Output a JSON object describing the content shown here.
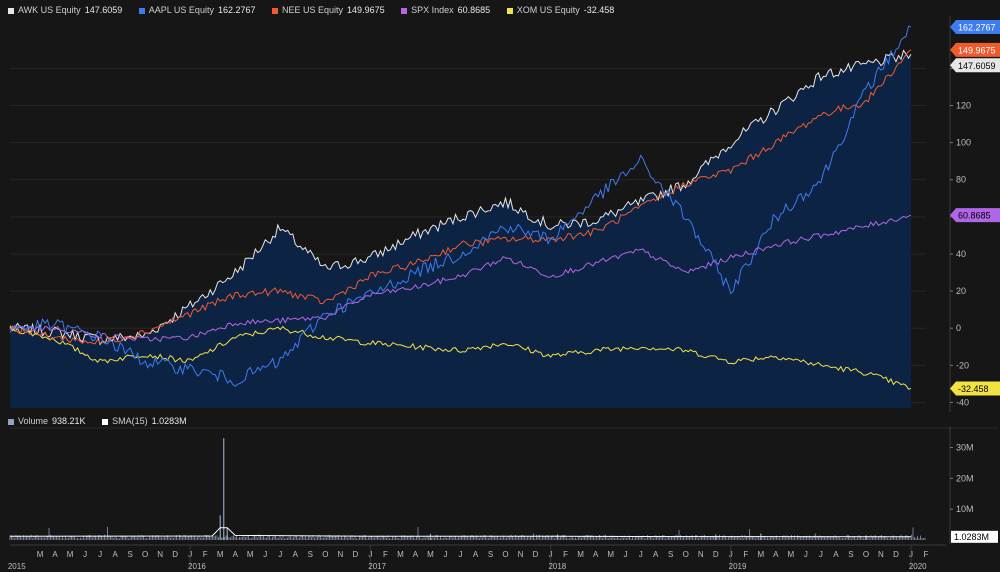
{
  "colors": {
    "AWK": "#e6e6e6",
    "AAPL": "#3d7bf0",
    "NEE": "#ef5b2d",
    "SPX": "#b066e6",
    "XOM": "#f2e244",
    "volume": "#8fa2be",
    "sma": "#ffffff",
    "area": "#0d2447"
  },
  "chart_data": [
    {
      "type": "line",
      "series": [
        {
          "key": "AWK",
          "name": "AWK US Equity",
          "last_label": "147.6059",
          "x": [
            "2015-01",
            "2015-04",
            "2015-07",
            "2015-10",
            "2016-01",
            "2016-04",
            "2016-07",
            "2016-10",
            "2017-01",
            "2017-04",
            "2017-07",
            "2017-10",
            "2018-01",
            "2018-04",
            "2018-07",
            "2018-10",
            "2019-01",
            "2019-04",
            "2019-07",
            "2019-10",
            "2020-01"
          ],
          "values": [
            0,
            -2,
            -6,
            -4,
            12,
            30,
            54,
            32,
            38,
            50,
            60,
            68,
            55,
            58,
            68,
            78,
            100,
            118,
            136,
            142,
            147.6
          ]
        },
        {
          "key": "AAPL",
          "name": "AAPL US Equity",
          "last_label": "162.2767",
          "x": [
            "2015-01",
            "2015-04",
            "2015-07",
            "2015-10",
            "2016-01",
            "2016-04",
            "2016-07",
            "2016-10",
            "2017-01",
            "2017-04",
            "2017-07",
            "2017-10",
            "2018-01",
            "2018-04",
            "2018-07",
            "2018-10",
            "2019-01",
            "2019-04",
            "2019-07",
            "2019-10",
            "2020-01"
          ],
          "values": [
            0,
            2,
            -5,
            -18,
            -22,
            -28,
            -18,
            8,
            18,
            30,
            40,
            55,
            48,
            70,
            90,
            60,
            20,
            60,
            80,
            128,
            162.3
          ]
        },
        {
          "key": "NEE",
          "name": "NEE US Equity",
          "last_label": "149.9675",
          "x": [
            "2015-01",
            "2015-04",
            "2015-07",
            "2015-10",
            "2016-01",
            "2016-04",
            "2016-07",
            "2016-10",
            "2017-01",
            "2017-04",
            "2017-07",
            "2017-10",
            "2018-01",
            "2018-04",
            "2018-07",
            "2018-10",
            "2019-01",
            "2019-04",
            "2019-07",
            "2019-10",
            "2020-01"
          ],
          "values": [
            0,
            -5,
            -8,
            -2,
            8,
            18,
            20,
            14,
            28,
            35,
            45,
            48,
            48,
            52,
            65,
            78,
            85,
            100,
            115,
            122,
            150
          ]
        },
        {
          "key": "SPX",
          "name": "SPX Index",
          "last_label": "60.8685",
          "x": [
            "2015-01",
            "2015-04",
            "2015-07",
            "2015-10",
            "2016-01",
            "2016-04",
            "2016-07",
            "2016-10",
            "2017-01",
            "2017-04",
            "2017-07",
            "2017-10",
            "2018-01",
            "2018-04",
            "2018-07",
            "2018-10",
            "2019-01",
            "2019-04",
            "2019-07",
            "2019-10",
            "2020-01"
          ],
          "values": [
            0,
            0,
            -4,
            -6,
            -5,
            3,
            4,
            6,
            18,
            22,
            28,
            38,
            28,
            35,
            42,
            30,
            38,
            45,
            50,
            55,
            60.9
          ]
        },
        {
          "key": "XOM",
          "name": "XOM US Equity",
          "last_label": "-32.458",
          "x": [
            "2015-01",
            "2015-04",
            "2015-07",
            "2015-10",
            "2016-01",
            "2016-04",
            "2016-07",
            "2016-10",
            "2017-01",
            "2017-04",
            "2017-07",
            "2017-10",
            "2018-01",
            "2018-04",
            "2018-07",
            "2018-10",
            "2019-01",
            "2019-04",
            "2019-07",
            "2019-10",
            "2020-01"
          ],
          "values": [
            0,
            -6,
            -18,
            -14,
            -18,
            -5,
            0,
            -5,
            -8,
            -10,
            -12,
            -8,
            -15,
            -12,
            -10,
            -12,
            -18,
            -15,
            -20,
            -24,
            -32.5
          ]
        }
      ],
      "ylim": [
        -43,
        165
      ],
      "yticks": [
        -40,
        -20,
        0,
        20,
        40,
        60,
        80,
        100,
        120,
        140
      ],
      "area_fill_series": "AWK",
      "grid": true,
      "legend": "top-left",
      "x_start": "2015-01",
      "x_end": "2020-02"
    },
    {
      "type": "bar",
      "series": [
        {
          "key": "volume",
          "name": "Volume",
          "last_label": "938.21K",
          "x": [
            "2016-03-01",
            "2016-03-08",
            "2016-03-15",
            "2017-05-01",
            "2018-01-15",
            "2018-12-01",
            "2019-03-01",
            "2019-10-01"
          ],
          "values": [
            8000000,
            33000000,
            4000000,
            2000000,
            1800000,
            1800000,
            2100000,
            1500000
          ]
        },
        {
          "key": "sma",
          "name": "SMA(15)",
          "last_label": "1.0283M",
          "x": [
            "2015-01",
            "2016-02-15",
            "2016-03-01",
            "2016-03-15",
            "2016-04-01",
            "2017-01",
            "2018-01",
            "2019-01",
            "2020-01"
          ],
          "values": [
            1200000,
            1300000,
            4000000,
            4000000,
            1500000,
            1200000,
            1200000,
            1100000,
            1028300
          ]
        }
      ],
      "ylim": [
        0,
        35000000
      ],
      "ytick_labels": [
        "10M",
        "20M",
        "30M"
      ],
      "yticks": [
        10000000,
        20000000,
        30000000
      ],
      "baseline_value": 1000000,
      "last_label": "1.0283M"
    }
  ],
  "x_axis": {
    "month_labels": [
      "M",
      "A",
      "M",
      "J",
      "J",
      "A",
      "S",
      "O",
      "N",
      "D",
      "J",
      "F",
      "M",
      "A",
      "M",
      "J",
      "J",
      "A",
      "S",
      "O",
      "N",
      "D",
      "J",
      "F",
      "M",
      "A",
      "M",
      "J",
      "J",
      "A",
      "S",
      "O",
      "N",
      "D",
      "J",
      "F",
      "M",
      "A",
      "M",
      "J",
      "J",
      "A",
      "S",
      "O",
      "N",
      "D",
      "J",
      "F",
      "M",
      "A",
      "M",
      "J",
      "J",
      "A",
      "S",
      "O",
      "N",
      "D",
      "J",
      "F"
    ],
    "year_labels": [
      "2015",
      "2016",
      "2017",
      "2018",
      "2019",
      "2020"
    ]
  }
}
